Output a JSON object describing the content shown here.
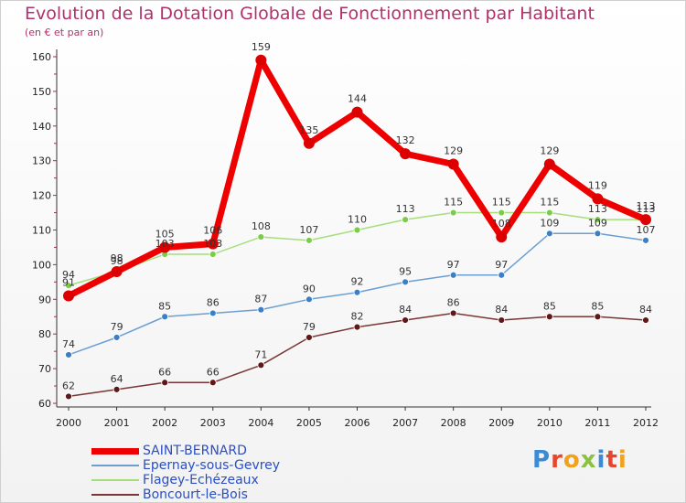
{
  "header": {
    "title": "Evolution de la Dotation Globale de Fonctionnement par Habitant",
    "subtitle": "(en € et par an)"
  },
  "logo": {
    "text": "Proxiti"
  },
  "chart_data": {
    "type": "line",
    "title": "Evolution de la Dotation Globale de Fonctionnement par Habitant",
    "subtitle": "(en € et par an)",
    "xlabel": "",
    "ylabel": "",
    "x": [
      "2000",
      "2001",
      "2002",
      "2003",
      "2004",
      "2005",
      "2006",
      "2007",
      "2008",
      "2009",
      "2010",
      "2011",
      "2012"
    ],
    "ylim": [
      60,
      160
    ],
    "yticks": [
      60,
      70,
      80,
      90,
      100,
      110,
      120,
      130,
      140,
      150,
      160
    ],
    "grid": false,
    "legend_position": "bottom-left",
    "series": [
      {
        "name": "SAINT-BERNARD",
        "color": "#ee0000",
        "marker": "#dd0000",
        "width": 7,
        "radius": 6,
        "values": [
          91,
          98,
          105,
          106,
          159,
          135,
          144,
          132,
          129,
          108,
          129,
          119,
          113
        ]
      },
      {
        "name": "Epernay-sous-Gevrey",
        "color": "#6b9fd4",
        "marker": "#3c7fc4",
        "width": 1.5,
        "radius": 3.5,
        "values": [
          74,
          79,
          85,
          86,
          87,
          90,
          92,
          95,
          97,
          97,
          109,
          109,
          107
        ]
      },
      {
        "name": "Flagey-Echézeaux",
        "color": "#a6de7c",
        "marker": "#7ccc4c",
        "width": 1.5,
        "radius": 3.5,
        "values": [
          94,
          98,
          103,
          103,
          108,
          107,
          110,
          113,
          115,
          115,
          115,
          113,
          113
        ]
      },
      {
        "name": "Boncourt-le-Bois",
        "color": "#7a3535",
        "marker": "#5e1818",
        "width": 1.5,
        "radius": 3.5,
        "values": [
          62,
          64,
          66,
          66,
          71,
          79,
          82,
          84,
          86,
          84,
          85,
          85,
          84
        ]
      }
    ]
  }
}
